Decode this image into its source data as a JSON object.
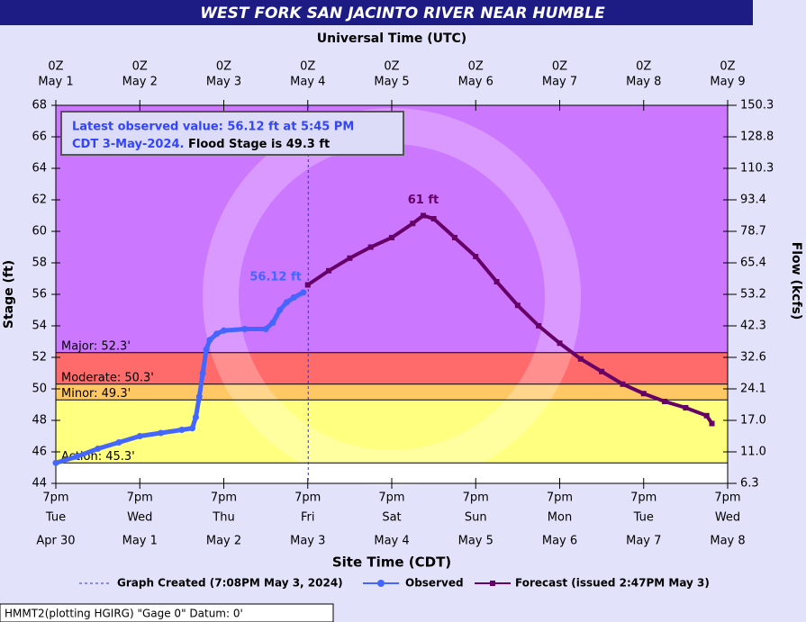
{
  "chart_data": {
    "type": "hydrograph",
    "title": "WEST FORK SAN JACINTO RIVER NEAR HUMBLE",
    "top_axis_label": "Universal Time (UTC)",
    "x_label": "Site Time (CDT)",
    "y_label": "Stage (ft)",
    "y2_label": "Flow (kcfs)",
    "xlim": [
      "05-01T00:00",
      "05-09T00:00"
    ],
    "xticks": [
      {
        "value": "05-01T00:00",
        "top": [
          "0Z",
          "May 1"
        ],
        "bottom": [
          "7pm",
          "Tue",
          "Apr 30"
        ]
      },
      {
        "value": "05-02T00:00",
        "top": [
          "0Z",
          "May 2"
        ],
        "bottom": [
          "7pm",
          "Wed",
          "May 1"
        ]
      },
      {
        "value": "05-03T00:00",
        "top": [
          "0Z",
          "May 3"
        ],
        "bottom": [
          "7pm",
          "Thu",
          "May 2"
        ]
      },
      {
        "value": "05-04T00:00",
        "top": [
          "0Z",
          "May 4"
        ],
        "bottom": [
          "7pm",
          "Fri",
          "May 3"
        ]
      },
      {
        "value": "05-05T00:00",
        "top": [
          "0Z",
          "May 5"
        ],
        "bottom": [
          "7pm",
          "Sat",
          "May 4"
        ]
      },
      {
        "value": "05-06T00:00",
        "top": [
          "0Z",
          "May 6"
        ],
        "bottom": [
          "7pm",
          "Sun",
          "May 5"
        ]
      },
      {
        "value": "05-07T00:00",
        "top": [
          "0Z",
          "May 7"
        ],
        "bottom": [
          "7pm",
          "Mon",
          "May 6"
        ]
      },
      {
        "value": "05-08T00:00",
        "top": [
          "0Z",
          "May 8"
        ],
        "bottom": [
          "7pm",
          "Tue",
          "May 7"
        ]
      },
      {
        "value": "05-09T00:00",
        "top": [
          "0Z",
          "May 9"
        ],
        "bottom": [
          "7pm",
          "Wed",
          "May 8"
        ]
      }
    ],
    "ylim": [
      44,
      68
    ],
    "yticks": [
      44,
      46,
      48,
      50,
      52,
      54,
      56,
      58,
      60,
      62,
      64,
      66,
      68
    ],
    "y2lim": [
      6.3,
      150.3
    ],
    "y2ticks": [
      6.3,
      {
        "value": 11,
        "label": "11.0"
      },
      {
        "value": 17,
        "label": "17.0"
      },
      24.1,
      32.6,
      42.3,
      53.2,
      65.4,
      78.7,
      93.4,
      110.3,
      128.8,
      150.3
    ],
    "flood_levels": [
      {
        "label": "Action: 45.3'",
        "value": 45.3,
        "color": "#ffff80"
      },
      {
        "label": "Minor: 49.3'",
        "value": 49.3,
        "color": "#ffc865"
      },
      {
        "label": "Moderate: 50.3'",
        "value": 50.3,
        "color": "#ff6a6a"
      },
      {
        "label": "Major: 52.3'",
        "value": 52.3,
        "color": "#cc77ff"
      }
    ],
    "below_action_color": "#ffffff",
    "series": [
      {
        "name": "Observed",
        "color": "#4466ff",
        "x": [
          "05-01T00:00",
          "05-01T06:00",
          "05-01T12:00",
          "05-01T18:00",
          "05-02T00:00",
          "05-02T06:00",
          "05-02T12:00",
          "05-02T15:00",
          "05-02T16:00",
          "05-02T17:00",
          "05-02T18:00",
          "05-02T19:00",
          "05-02T20:00",
          "05-02T22:00",
          "05-03T00:00",
          "05-03T06:00",
          "05-03T12:00",
          "05-03T14:00",
          "05-03T16:00",
          "05-03T18:00",
          "05-03T20:00",
          "05-03T22:45"
        ],
        "values": [
          45.3,
          45.7,
          46.2,
          46.6,
          47.0,
          47.2,
          47.4,
          47.5,
          48.2,
          49.5,
          51.0,
          52.5,
          53.1,
          53.5,
          53.7,
          53.8,
          53.8,
          54.2,
          55.0,
          55.5,
          55.8,
          56.12
        ],
        "value_labels": [
          null,
          null,
          null,
          null,
          null,
          null,
          null,
          null,
          null,
          null,
          null,
          null,
          null,
          null,
          null,
          null,
          null,
          null,
          null,
          null,
          null,
          "56.12 ft"
        ]
      },
      {
        "name": "Forecast (issued 2:47PM May 3)",
        "color": "#660066",
        "x": [
          "05-04T00:00",
          "05-04T06:00",
          "05-04T12:00",
          "05-04T18:00",
          "05-05T00:00",
          "05-05T06:00",
          "05-05T09:00",
          "05-05T12:00",
          "05-05T18:00",
          "05-06T00:00",
          "05-06T06:00",
          "05-06T12:00",
          "05-06T18:00",
          "05-07T00:00",
          "05-07T06:00",
          "05-07T12:00",
          "05-07T18:00",
          "05-08T00:00",
          "05-08T06:00",
          "05-08T12:00",
          "05-08T18:00",
          "05-08T19:30"
        ],
        "values": [
          56.6,
          57.5,
          58.3,
          59.0,
          59.6,
          60.5,
          61.0,
          60.8,
          59.6,
          58.4,
          56.8,
          55.3,
          54.0,
          52.9,
          51.9,
          51.1,
          50.3,
          49.7,
          49.2,
          48.8,
          48.3,
          47.8
        ],
        "value_labels": [
          null,
          null,
          null,
          null,
          null,
          null,
          "61 ft",
          null,
          null,
          null,
          null,
          null,
          null,
          null,
          null,
          null,
          null,
          null,
          null,
          null,
          null,
          null
        ]
      }
    ],
    "latest_box": [
      "Latest observed value: 56.12 ft at 5:45 PM",
      "CDT 3-May-2024.",
      " Flood Stage is 49.3 ft"
    ],
    "graph_created": {
      "label": "Graph Created (7:08PM May 3, 2024)",
      "x": "05-04T00:08"
    },
    "footer": "HMMT2(plotting HGIRG) \"Gage 0\" Datum: 0'"
  }
}
